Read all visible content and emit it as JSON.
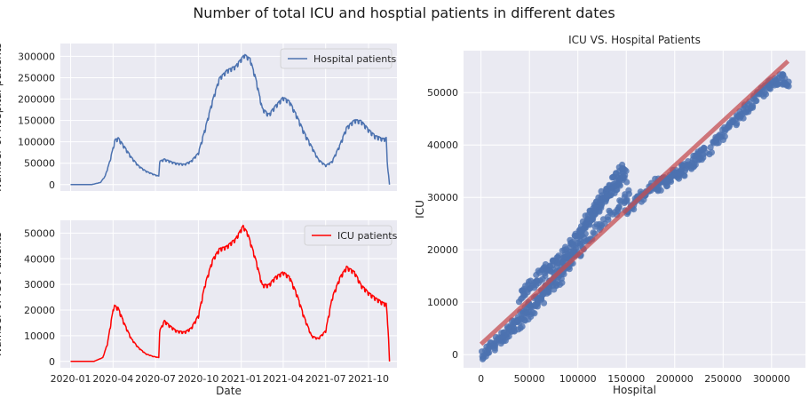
{
  "title": "Number of total ICU and hosptial patients in different dates",
  "colors": {
    "background": "#eaeaf2",
    "grid": "#ffffff",
    "hospital_line": "#4c72b0",
    "icu_line": "#ff0000",
    "scatter": "#4c72b0",
    "regression": "#c44e52"
  },
  "chart_data": [
    {
      "type": "line",
      "title": "",
      "xlabel": "",
      "ylabel": "Number of hospital patients",
      "ylim": [
        -15000,
        330000
      ],
      "yticks": [
        0,
        50000,
        100000,
        150000,
        200000,
        250000,
        300000
      ],
      "ytick_labels": [
        "0",
        "50000",
        "100000",
        "150000",
        "200000",
        "250000",
        "300000"
      ],
      "legend": "top-right",
      "grid": true,
      "series": [
        {
          "name": "Hospital patients",
          "x": [
            "2020-01-01",
            "2020-02-15",
            "2020-03-05",
            "2020-03-15",
            "2020-03-25",
            "2020-04-05",
            "2020-04-12",
            "2020-04-25",
            "2020-05-10",
            "2020-05-25",
            "2020-06-10",
            "2020-06-25",
            "2020-07-08",
            "2020-07-10",
            "2020-07-20",
            "2020-08-01",
            "2020-08-15",
            "2020-09-01",
            "2020-09-15",
            "2020-10-01",
            "2020-10-15",
            "2020-11-01",
            "2020-11-15",
            "2020-12-01",
            "2020-12-20",
            "2021-01-08",
            "2021-01-20",
            "2021-02-01",
            "2021-02-15",
            "2021-03-01",
            "2021-03-15",
            "2021-04-01",
            "2021-04-15",
            "2021-05-01",
            "2021-05-15",
            "2021-06-01",
            "2021-06-15",
            "2021-07-01",
            "2021-07-15",
            "2021-08-01",
            "2021-08-15",
            "2021-09-01",
            "2021-09-15",
            "2021-10-01",
            "2021-10-15",
            "2021-11-01",
            "2021-11-08",
            "2021-11-10",
            "2021-11-15"
          ],
          "y": [
            0,
            0,
            5000,
            20000,
            55000,
            105000,
            110000,
            90000,
            65000,
            45000,
            32000,
            25000,
            20000,
            55000,
            60000,
            55000,
            50000,
            48000,
            55000,
            75000,
            130000,
            200000,
            250000,
            268000,
            278000,
            305000,
            295000,
            250000,
            180000,
            165000,
            185000,
            205000,
            195000,
            160000,
            125000,
            90000,
            60000,
            45000,
            55000,
            95000,
            135000,
            152000,
            150000,
            130000,
            115000,
            108000,
            110000,
            55000,
            0
          ],
          "jitter": 9000
        }
      ]
    },
    {
      "type": "line",
      "title": "",
      "xlabel": "Date",
      "ylabel": "Number of ICU Patients",
      "ylim": [
        -2500,
        55000
      ],
      "yticks": [
        0,
        10000,
        20000,
        30000,
        40000,
        50000
      ],
      "ytick_labels": [
        "0",
        "10000",
        "20000",
        "30000",
        "40000",
        "50000"
      ],
      "xticks": [
        "2020-01-01",
        "2020-04-01",
        "2020-07-01",
        "2020-10-01",
        "2021-01-01",
        "2021-04-01",
        "2021-07-01",
        "2021-10-01"
      ],
      "xtick_labels": [
        "2020-01",
        "2020-04",
        "2020-07",
        "2020-10",
        "2021-01",
        "2021-04",
        "2021-07",
        "2021-10"
      ],
      "xlim": [
        "2019-12-10",
        "2021-12-01"
      ],
      "legend": "top-right",
      "grid": true,
      "series": [
        {
          "name": "ICU patients",
          "x": [
            "2020-01-01",
            "2020-02-20",
            "2020-03-10",
            "2020-03-20",
            "2020-03-28",
            "2020-04-03",
            "2020-04-12",
            "2020-04-25",
            "2020-05-10",
            "2020-05-25",
            "2020-06-10",
            "2020-06-25",
            "2020-07-08",
            "2020-07-10",
            "2020-07-20",
            "2020-08-01",
            "2020-08-15",
            "2020-09-01",
            "2020-09-15",
            "2020-10-01",
            "2020-10-15",
            "2020-11-01",
            "2020-11-15",
            "2020-12-01",
            "2020-12-20",
            "2021-01-05",
            "2021-01-15",
            "2021-02-01",
            "2021-02-15",
            "2021-03-01",
            "2021-03-15",
            "2021-04-01",
            "2021-04-15",
            "2021-05-01",
            "2021-05-15",
            "2021-06-01",
            "2021-06-15",
            "2021-07-01",
            "2021-07-15",
            "2021-08-01",
            "2021-08-15",
            "2021-09-01",
            "2021-09-15",
            "2021-10-01",
            "2021-10-15",
            "2021-11-01",
            "2021-11-08",
            "2021-11-12",
            "2021-11-15"
          ],
          "y": [
            0,
            0,
            1500,
            7000,
            16000,
            22000,
            21000,
            15000,
            9000,
            5500,
            3000,
            2000,
            1500,
            12000,
            16000,
            14000,
            12000,
            11500,
            13000,
            18000,
            30000,
            40000,
            44000,
            45000,
            48000,
            53000,
            50000,
            40000,
            30000,
            30000,
            33000,
            35000,
            33000,
            26000,
            18000,
            10000,
            9000,
            12000,
            25000,
            33000,
            37000,
            35000,
            30000,
            27000,
            25000,
            23000,
            22500,
            13000,
            0
          ],
          "jitter": 1400
        }
      ]
    },
    {
      "type": "scatter",
      "title": "ICU VS. Hospital Patients",
      "xlabel": "Hospital",
      "ylabel": "ICU",
      "xlim": [
        -18000,
        335000
      ],
      "ylim": [
        -2500,
        58000
      ],
      "xticks": [
        0,
        50000,
        100000,
        150000,
        200000,
        250000,
        300000
      ],
      "xtick_labels": [
        "0",
        "50000",
        "100000",
        "150000",
        "200000",
        "250000",
        "300000"
      ],
      "yticks": [
        0,
        10000,
        20000,
        30000,
        40000,
        50000
      ],
      "ytick_labels": [
        "0",
        "10000",
        "20000",
        "30000",
        "40000",
        "50000"
      ],
      "grid": true,
      "regression_line": {
        "x": [
          0,
          317000
        ],
        "y": [
          2000,
          56000
        ]
      },
      "branches": [
        {
          "x": [
            0,
            10000,
            20000,
            30000,
            40000,
            50000,
            60000,
            70000,
            80000,
            90000,
            100000,
            110000,
            120000,
            130000,
            140000,
            150000
          ],
          "y": [
            0,
            1200,
            3000,
            5000,
            7000,
            9000,
            11000,
            13500,
            15500,
            18000,
            21000,
            25000,
            28500,
            31500,
            34000,
            36000
          ]
        },
        {
          "x": [
            20000,
            40000,
            60000,
            80000,
            100000,
            120000,
            140000,
            155000
          ],
          "y": [
            2500,
            6000,
            10000,
            14000,
            19000,
            24000,
            28000,
            31000
          ]
        },
        {
          "x": [
            40000,
            50000,
            60000,
            70000,
            80000,
            90000,
            100000,
            110000,
            120000,
            130000,
            140000,
            150000
          ],
          "y": [
            11000,
            13000,
            15000,
            16500,
            18000,
            20000,
            23000,
            26000,
            28000,
            30000,
            32000,
            34000
          ]
        },
        {
          "x": [
            150000,
            160000,
            170000,
            180000,
            190000,
            200000,
            210000
          ],
          "y": [
            27000,
            29000,
            31000,
            32500,
            33000,
            34000,
            34500
          ]
        },
        {
          "x": [
            200000,
            220000,
            240000,
            250000,
            260000,
            270000,
            280000,
            290000,
            300000,
            310000,
            317000
          ],
          "y": [
            35000,
            37000,
            40000,
            42000,
            44000,
            46000,
            48000,
            50000,
            51500,
            53000,
            52000
          ]
        },
        {
          "x": [
            180000,
            200000,
            220000,
            230000
          ],
          "y": [
            31000,
            34500,
            37000,
            38500
          ]
        }
      ],
      "scatter_jitter": 1500
    }
  ]
}
